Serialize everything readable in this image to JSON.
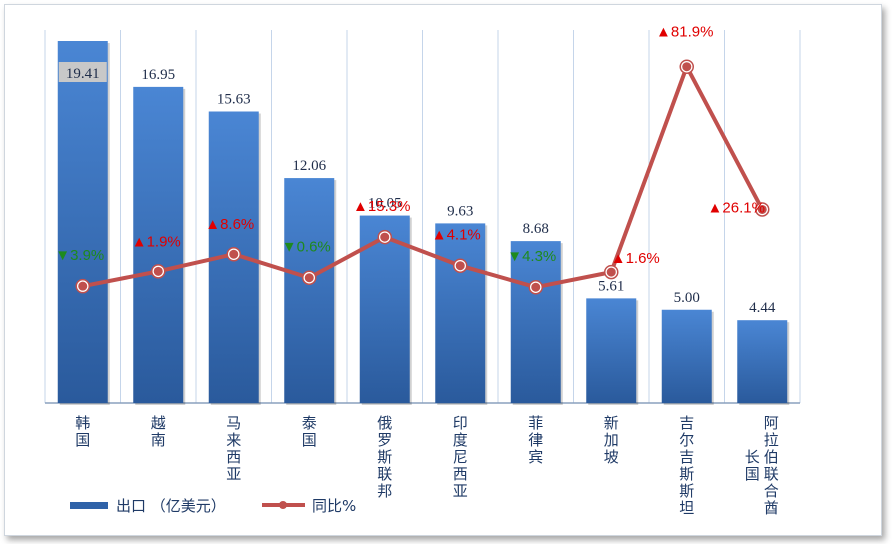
{
  "chart_data": {
    "type": "bar+line",
    "categories": [
      "韩国",
      "越南",
      "马来西亚",
      "泰国",
      "俄罗斯联邦",
      "印度尼西亚",
      "菲律宾",
      "新加坡",
      "吉尔吉斯斯坦",
      "阿拉伯联合酋长国"
    ],
    "category_lines": [
      [
        "韩",
        "国"
      ],
      [
        "越",
        "南"
      ],
      [
        "马",
        "来",
        "西",
        "亚"
      ],
      [
        "泰",
        "国"
      ],
      [
        "俄",
        "罗",
        "斯",
        "联",
        "邦"
      ],
      [
        "印",
        "度",
        "尼",
        "西",
        "亚"
      ],
      [
        "菲",
        "律",
        "宾"
      ],
      [
        "新",
        "加",
        "坡"
      ],
      [
        "吉",
        "尔",
        "吉",
        "斯",
        "斯",
        "坦"
      ],
      [
        "阿",
        "拉",
        "伯",
        "联",
        "合",
        "酋"
      ]
    ],
    "category_second_col": [
      null,
      null,
      null,
      null,
      null,
      null,
      null,
      null,
      null,
      [
        "长",
        "国"
      ]
    ],
    "series": [
      {
        "name": "出口 （亿美元）",
        "type": "bar",
        "values": [
          19.41,
          16.95,
          15.63,
          12.06,
          10.05,
          9.63,
          8.68,
          5.61,
          5.0,
          4.44
        ],
        "labels": [
          "19.41",
          "16.95",
          "15.63",
          "12.06",
          "10.05",
          "9.63",
          "8.68",
          "5.61",
          "5.00",
          "4.44"
        ],
        "color": "#3a76c4"
      },
      {
        "name": "同比%",
        "type": "line",
        "values": [
          -3.9,
          1.9,
          8.6,
          -0.6,
          15.3,
          4.1,
          -4.3,
          1.6,
          81.9,
          26.1
        ],
        "labels": [
          "3.9%",
          "1.9%",
          "8.6%",
          "0.6%",
          "15.3%",
          "4.1%",
          "4.3%",
          "1.6%",
          "81.9%",
          "26.1%"
        ],
        "color": "#c0504d"
      }
    ],
    "up_color": "#e00000",
    "down_color": "#1e8a1e",
    "bar_ylim": [
      0,
      20
    ],
    "line_ylim": [
      -5,
      90
    ],
    "grid": "vertical",
    "legend": "bottom-left"
  },
  "legend": {
    "bar": "出口 （亿美元）",
    "line": "同比%"
  }
}
